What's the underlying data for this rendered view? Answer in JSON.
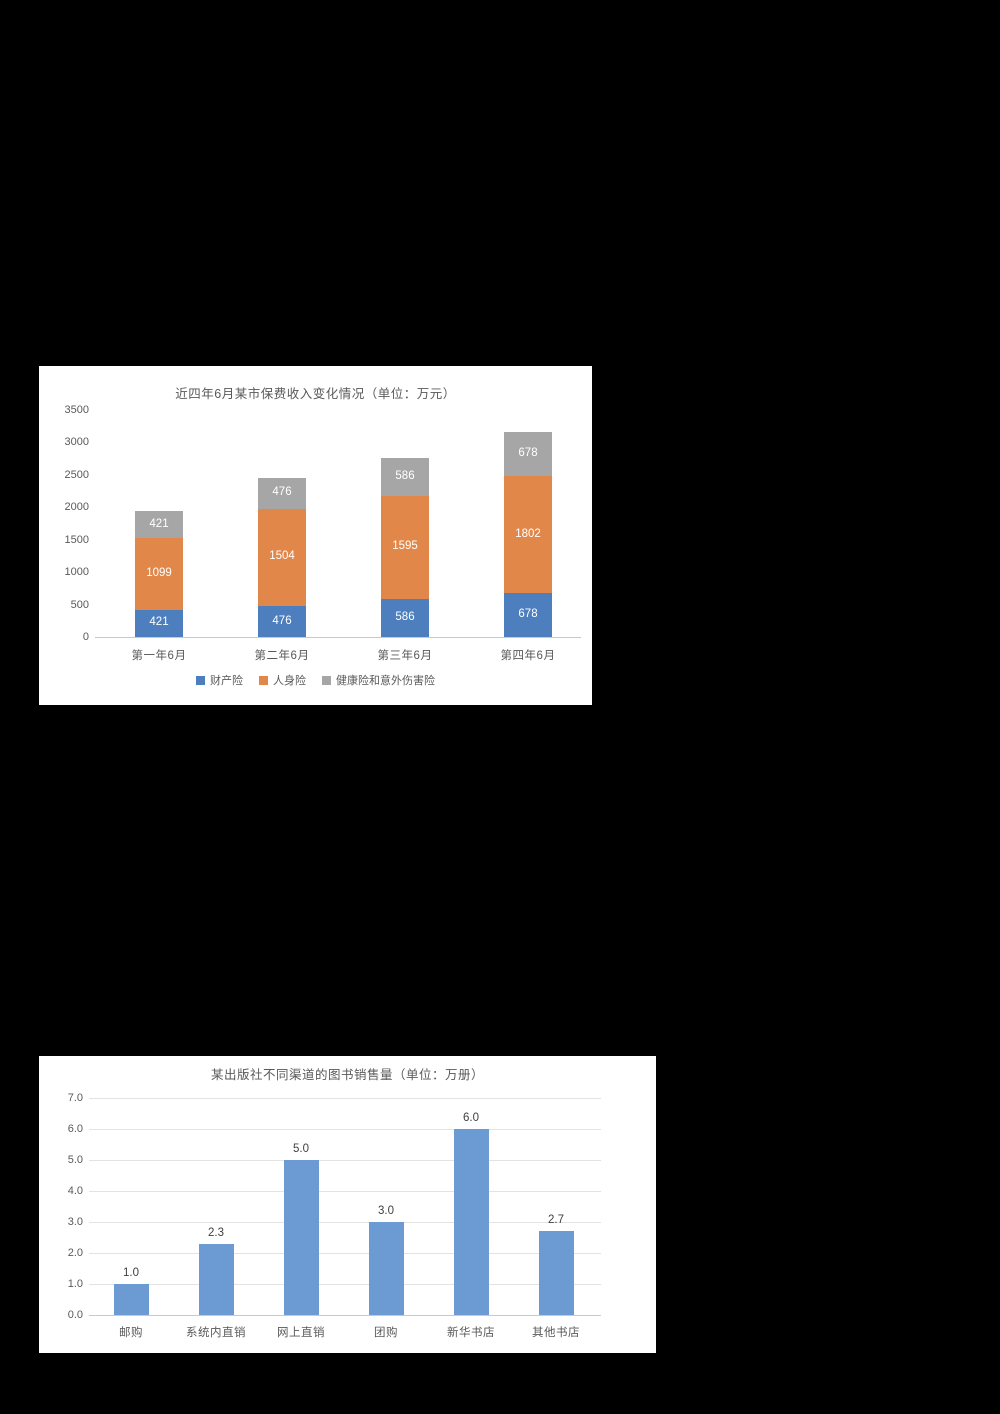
{
  "page": {
    "background_color": "#000000",
    "panel_color": "#ffffff"
  },
  "colors": {
    "text": "#595959",
    "axis_line": "#c9c9c9",
    "gridline": "#e3e3e3",
    "insurance_blue": "#4d7ebe",
    "insurance_orange": "#e2874a",
    "insurance_gray": "#a6a6a6",
    "books_blue": "#6c9bd3",
    "segment_label": "#ffffff",
    "value_label": "#3f3f3f"
  },
  "chart_data": [
    {
      "type": "bar",
      "stacked": true,
      "title": "近四年6月某市保费收入变化情况（单位：万元）",
      "categories": [
        "第一年6月",
        "第二年6月",
        "第三年6月",
        "第四年6月"
      ],
      "series": [
        {
          "name": "财产险",
          "color": "#4d7ebe",
          "values": [
            421,
            476,
            586,
            678
          ],
          "labels": [
            "421",
            "476",
            "586",
            "678"
          ]
        },
        {
          "name": "人身险",
          "color": "#e2874a",
          "values": [
            1099,
            1504,
            1595,
            1802
          ],
          "labels": [
            "1099",
            "1504",
            "1595",
            "1802"
          ]
        },
        {
          "name": "健康险和意外伤害险",
          "color": "#a6a6a6",
          "values": [
            421,
            476,
            586,
            678
          ],
          "labels": [
            "421",
            "476",
            "586",
            "678"
          ]
        }
      ],
      "ylim": [
        0,
        3500
      ],
      "yticks": [
        0,
        500,
        1000,
        1500,
        2000,
        2500,
        3000,
        3500
      ],
      "ytick_labels": [
        "0",
        "500",
        "1000",
        "1500",
        "2000",
        "2500",
        "3000",
        "3500"
      ],
      "grid": false,
      "legend_position": "bottom"
    },
    {
      "type": "bar",
      "stacked": false,
      "title": "某出版社不同渠道的图书销售量（单位：万册）",
      "categories": [
        "邮购",
        "系统内直销",
        "网上直销",
        "团购",
        "新华书店",
        "其他书店"
      ],
      "values": [
        1.0,
        2.3,
        5.0,
        3.0,
        6.0,
        2.7
      ],
      "value_labels": [
        "1.0",
        "2.3",
        "5.0",
        "3.0",
        "6.0",
        "2.7"
      ],
      "bar_color": "#6c9bd3",
      "ylim": [
        0,
        7
      ],
      "yticks": [
        0,
        1,
        2,
        3,
        4,
        5,
        6,
        7
      ],
      "ytick_labels": [
        "0.0",
        "1.0",
        "2.0",
        "3.0",
        "4.0",
        "5.0",
        "6.0",
        "7.0"
      ],
      "grid": true,
      "legend_position": "none"
    }
  ]
}
